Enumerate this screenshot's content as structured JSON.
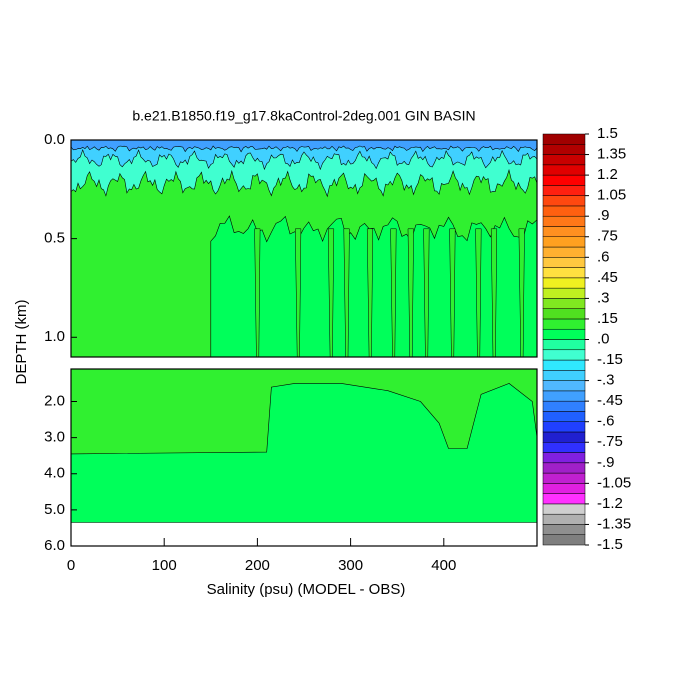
{
  "chart_data": {
    "type": "contour",
    "title": "b.e21.B1850.f19_g17.8kaControl-2deg.001 GIN BASIN",
    "xlabel": "Salinity (psu) (MODEL - OBS)",
    "ylabel": "DEPTH (km)",
    "xlim": [
      0,
      500
    ],
    "xticks": [
      0,
      100,
      200,
      300,
      400
    ],
    "panels": [
      {
        "ylim": [
          0,
          1.1
        ],
        "yticks": [
          {
            "value": 0,
            "label": "0.0"
          },
          {
            "value": 0.5,
            "label": "0.5"
          },
          {
            "value": 1,
            "label": "1.0"
          }
        ],
        "levels": [
          0.1,
          0.05,
          -0.1,
          -0.25,
          -0.4
        ]
      },
      {
        "ylim": [
          1.1,
          6
        ],
        "yticks": [
          {
            "value": 2,
            "label": "2.0"
          },
          {
            "value": 3,
            "label": "3.0"
          },
          {
            "value": 4,
            "label": "4.0"
          },
          {
            "value": 5,
            "label": "5.0"
          },
          {
            "value": 6,
            "label": "6.0"
          }
        ],
        "levels": [
          0.05,
          0.1
        ]
      }
    ],
    "colorbar": {
      "clim": [
        -1.5,
        1.5
      ],
      "ticks": [
        1.5,
        1.35,
        1.2,
        1.05,
        {
          "value": 0.9,
          "label": ".9"
        },
        {
          "value": 0.75,
          "label": ".75"
        },
        {
          "value": 0.6,
          "label": ".6"
        },
        {
          "value": 0.45,
          "label": ".45"
        },
        {
          "value": 0.3,
          "label": ".3"
        },
        {
          "value": 0.15,
          "label": ".15"
        },
        {
          "value": 0,
          "label": ".0"
        },
        {
          "value": -0.15,
          "label": "-.15"
        },
        {
          "value": -0.3,
          "label": "-.3"
        },
        {
          "value": -0.45,
          "label": "-.45"
        },
        {
          "value": -0.6,
          "label": "-.6"
        },
        {
          "value": -0.75,
          "label": "-.75"
        },
        {
          "value": -0.9,
          "label": "-.9"
        },
        -1.05,
        -1.2,
        -1.35,
        -1.5
      ],
      "colors": [
        "#7f7f7f",
        "#8f8f8f",
        "#b0b0b0",
        "#cfcfcf",
        "#ff30ff",
        "#e020e0",
        "#c020d0",
        "#a020c8",
        "#8020e0",
        "#3030ff",
        "#2020d0",
        "#2040ff",
        "#2060ff",
        "#3080ff",
        "#40a0ff",
        "#50b8ff",
        "#40d0ff",
        "#30e8ff",
        "#40ffd0",
        "#20ffa0",
        "#00ff5a",
        "#30f030",
        "#50e020",
        "#80e820",
        "#c0f020",
        "#f0f020",
        "#ffe040",
        "#ffc840",
        "#ffb030",
        "#ffa020",
        "#ff9020",
        "#ff7818",
        "#ff6010",
        "#ff4810",
        "#ff2010",
        "#ff0000",
        "#e00000",
        "#c80000",
        "#b00000",
        "#a00000"
      ]
    }
  }
}
